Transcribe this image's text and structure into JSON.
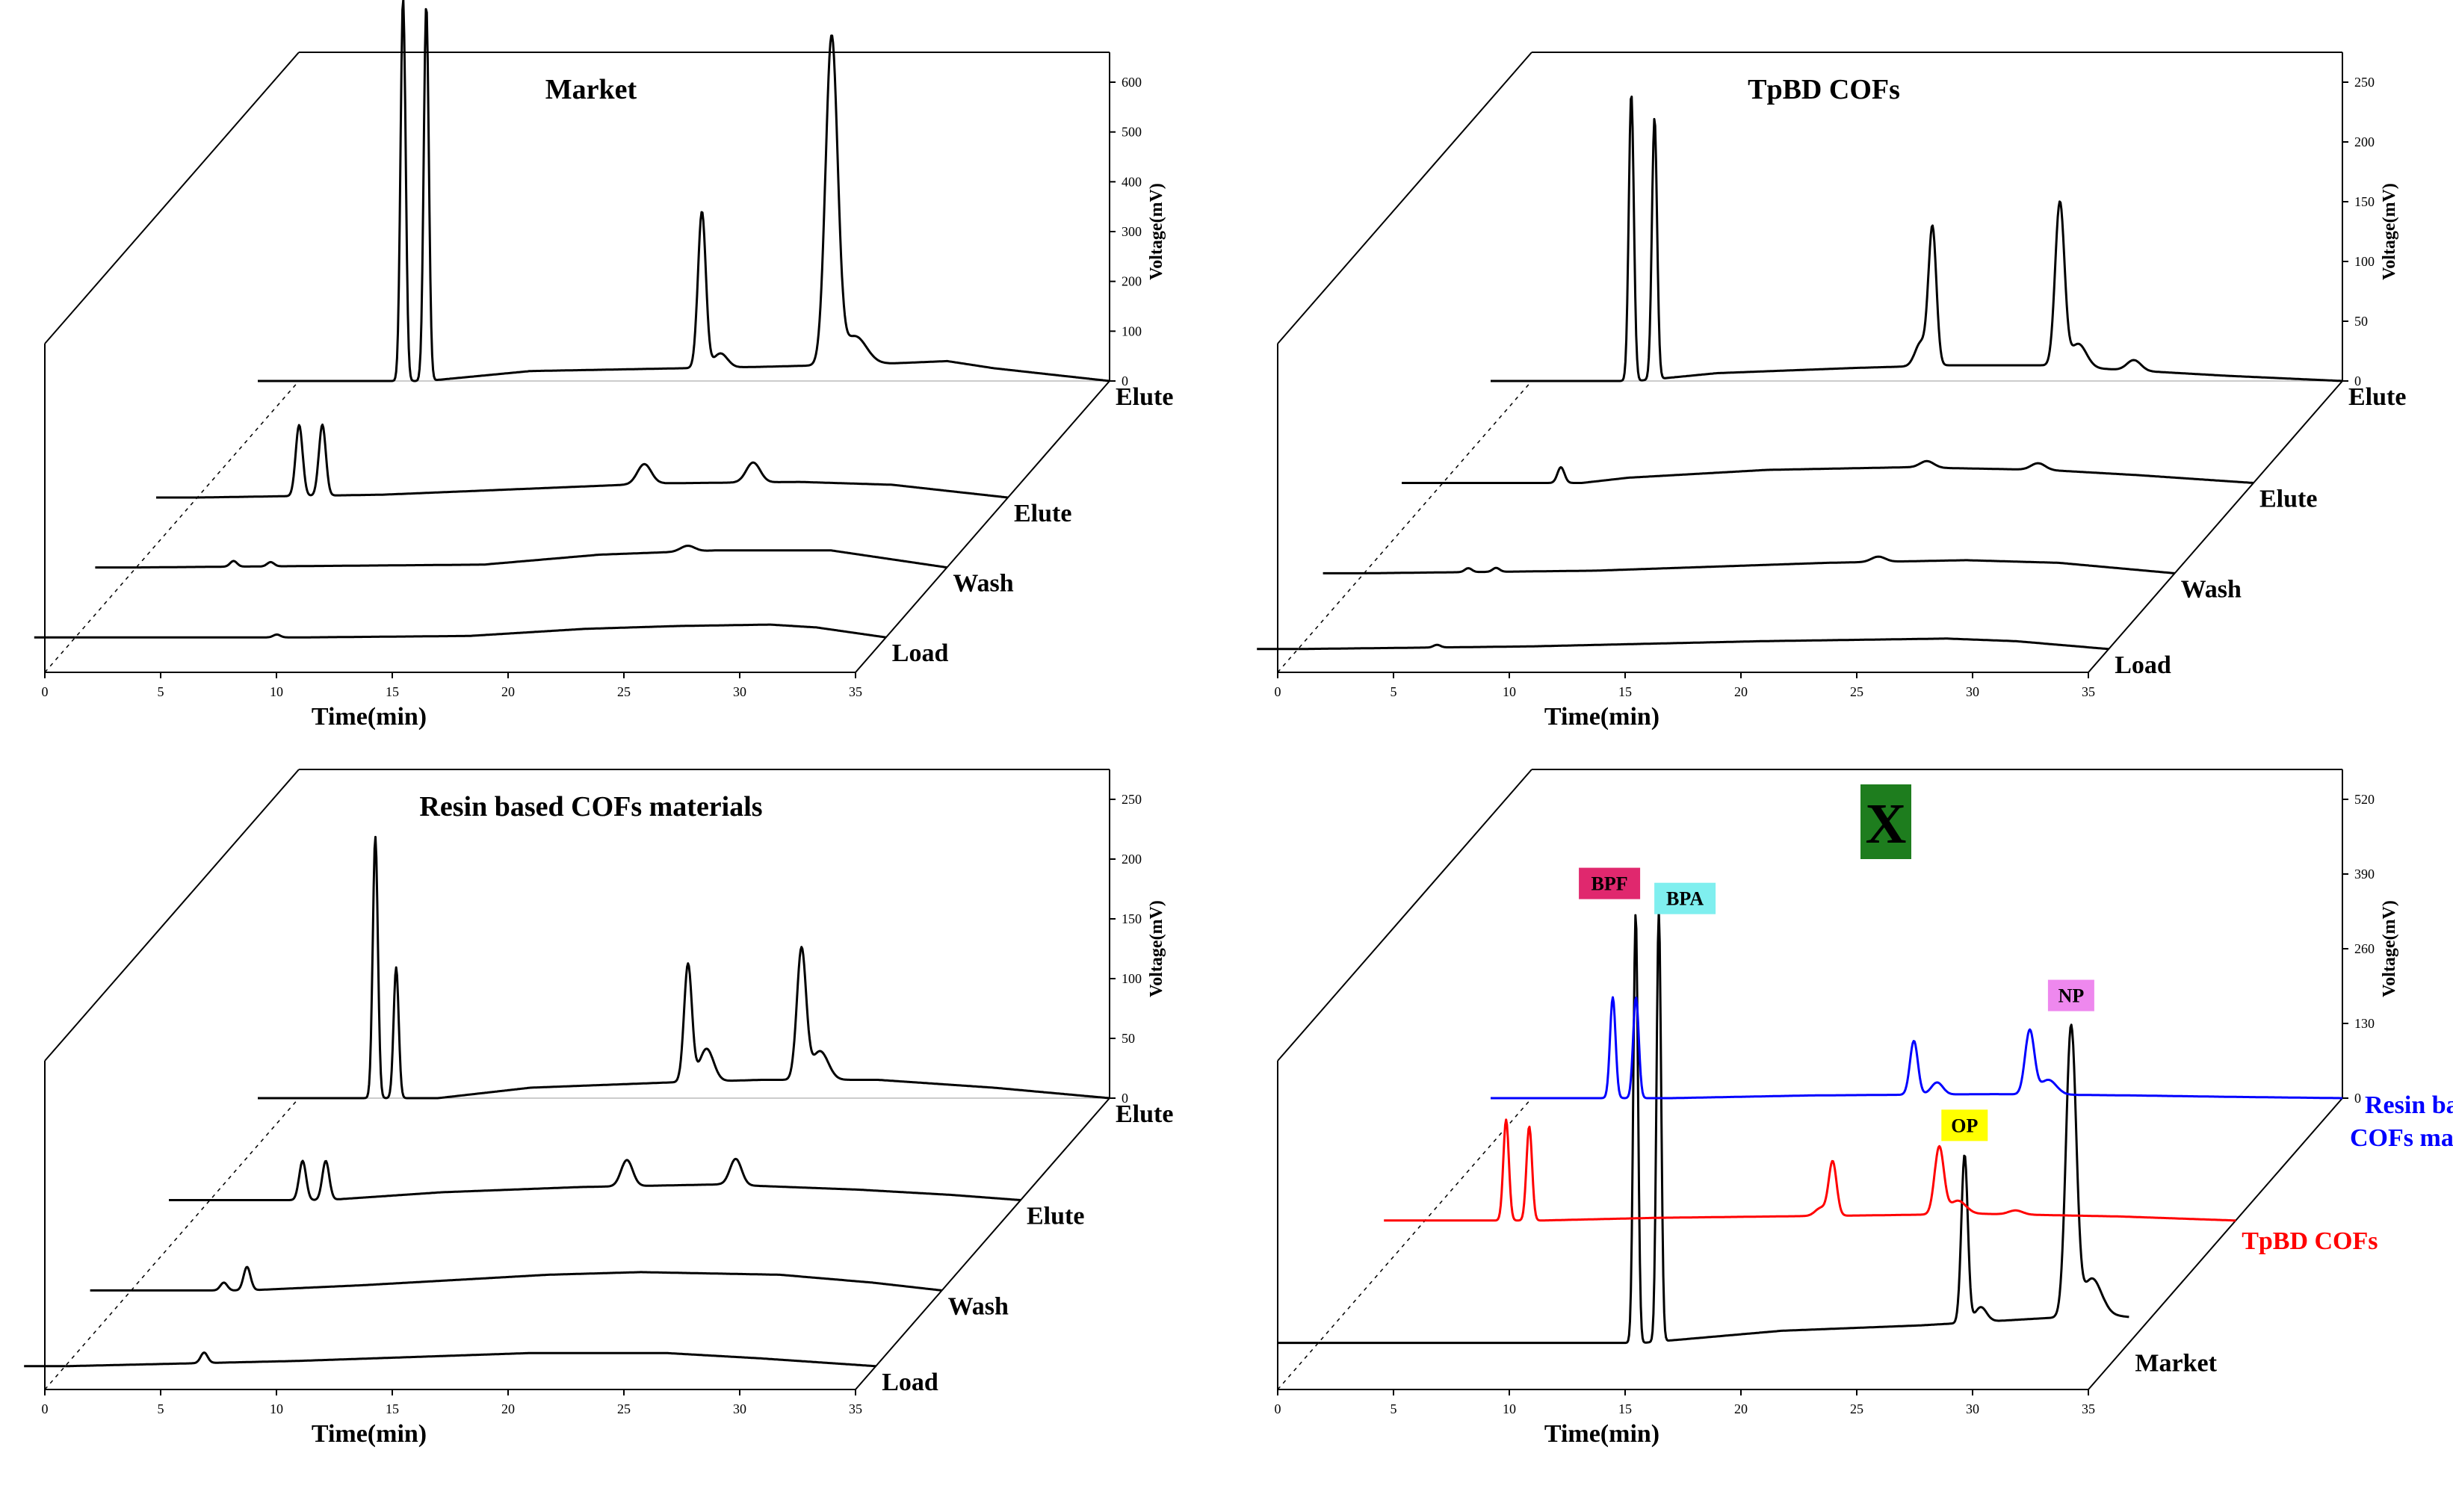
{
  "chart_data": [
    {
      "type": "line",
      "title": "Market",
      "xlabel": "Time(min)",
      "ylabel": "Voltage(mV)",
      "xlim": [
        0,
        35
      ],
      "ylim": [
        0,
        600
      ],
      "xticks": [
        "0",
        "5",
        "10",
        "15",
        "20",
        "25",
        "30",
        "35"
      ],
      "yticks": [
        "0",
        "100",
        "200",
        "300",
        "400",
        "500",
        "600"
      ],
      "series": [
        {
          "name": "Load",
          "color": "#000000",
          "baseline": [
            [
              0,
              0
            ],
            [
              10,
              0
            ],
            [
              17,
              2
            ],
            [
              22,
              12
            ],
            [
              26,
              16
            ],
            [
              30,
              18
            ],
            [
              32,
              14
            ],
            [
              35,
              0
            ]
          ],
          "peaks": [
            [
              8.7,
              4,
              0.15
            ]
          ]
        },
        {
          "name": "Wash",
          "color": "#000000",
          "baseline": [
            [
              0,
              0
            ],
            [
              15,
              4
            ],
            [
              20,
              18
            ],
            [
              25,
              24
            ],
            [
              30,
              24
            ],
            [
              35,
              0
            ]
          ],
          "peaks": [
            [
              4.2,
              8,
              0.15
            ],
            [
              5.8,
              6,
              0.15
            ],
            [
              23.8,
              8,
              0.3
            ]
          ]
        },
        {
          "name": "Elute",
          "color": "#000000",
          "baseline": [
            [
              0,
              0
            ],
            [
              8,
              4
            ],
            [
              14,
              12
            ],
            [
              20,
              20
            ],
            [
              26,
              22
            ],
            [
              30,
              18
            ],
            [
              35,
              0
            ]
          ],
          "peaks": [
            [
              4.4,
              100,
              0.15
            ],
            [
              5.4,
              100,
              0.15
            ],
            [
              19.3,
              28,
              0.3
            ],
            [
              24.0,
              28,
              0.3
            ]
          ]
        },
        {
          "name": "Elute",
          "color": "#000000",
          "baseline": [
            [
              0,
              0
            ],
            [
              5.5,
              0
            ],
            [
              10,
              14
            ],
            [
              20,
              20
            ],
            [
              25,
              24
            ],
            [
              28,
              28
            ],
            [
              30,
              18
            ],
            [
              35,
              0
            ]
          ],
          "peaks": [
            [
              4.5,
              540,
              0.11
            ],
            [
              5.5,
              530,
              0.11
            ],
            [
              17.4,
              220,
              0.17
            ],
            [
              18.2,
              20,
              0.3
            ],
            [
              23.0,
              460,
              0.26
            ],
            [
              24.0,
              40,
              0.5
            ]
          ]
        }
      ]
    },
    {
      "type": "line",
      "title": "TpBD COFs",
      "xlabel": "Time(min)",
      "ylabel": "Voltage(mV)",
      "xlim": [
        0,
        35
      ],
      "ylim": [
        0,
        250
      ],
      "xticks": [
        "0",
        "5",
        "10",
        "15",
        "20",
        "25",
        "30",
        "35"
      ],
      "yticks": [
        "0",
        "50",
        "100",
        "150",
        "200",
        "250"
      ],
      "series": [
        {
          "name": "Load",
          "color": "#000000",
          "baseline": [
            [
              0,
              0
            ],
            [
              10,
              2
            ],
            [
              20,
              6
            ],
            [
              28,
              8
            ],
            [
              31,
              6
            ],
            [
              35,
              0
            ]
          ],
          "peaks": [
            [
              6.0,
              2,
              0.15
            ]
          ]
        },
        {
          "name": "Wash",
          "color": "#000000",
          "baseline": [
            [
              0,
              0
            ],
            [
              10,
              2
            ],
            [
              20,
              8
            ],
            [
              26,
              10
            ],
            [
              30,
              8
            ],
            [
              35,
              0
            ]
          ],
          "peaks": [
            [
              4.5,
              3,
              0.15
            ],
            [
              5.7,
              3,
              0.15
            ],
            [
              22.2,
              4,
              0.3
            ]
          ]
        },
        {
          "name": "Elute",
          "color": "#000000",
          "baseline": [
            [
              0,
              0
            ],
            [
              6,
              0
            ],
            [
              8,
              4
            ],
            [
              14,
              10
            ],
            [
              20,
              12
            ],
            [
              26,
              10
            ],
            [
              30,
              6
            ],
            [
              35,
              0
            ]
          ],
          "peaks": [
            [
              5.1,
              12,
              0.15
            ],
            [
              20.9,
              5,
              0.3
            ],
            [
              25.7,
              5,
              0.3
            ]
          ]
        },
        {
          "name": "Elute",
          "color": "#000000",
          "baseline": [
            [
              0,
              0
            ],
            [
              4.5,
              0
            ],
            [
              8,
              6
            ],
            [
              14,
              10
            ],
            [
              18,
              12
            ],
            [
              22,
              12
            ],
            [
              26,
              8
            ],
            [
              30,
              4
            ],
            [
              35,
              0
            ]
          ],
          "peaks": [
            [
              4.3,
              220,
              0.11
            ],
            [
              5.3,
              200,
              0.11
            ],
            [
              17.3,
              105,
              0.17
            ],
            [
              16.8,
              18,
              0.25
            ],
            [
              22.8,
              125,
              0.2
            ],
            [
              23.6,
              18,
              0.35
            ],
            [
              26.0,
              8,
              0.3
            ]
          ]
        }
      ]
    },
    {
      "type": "line",
      "title": "Resin based COFs materials",
      "xlabel": "Time(min)",
      "ylabel": "Voltage(mV)",
      "xlim": [
        0,
        35
      ],
      "ylim": [
        0,
        250
      ],
      "xticks": [
        "0",
        "5",
        "10",
        "15",
        "20",
        "25",
        "30",
        "35"
      ],
      "yticks": [
        "0",
        "50",
        "100",
        "150",
        "200",
        "250"
      ],
      "series": [
        {
          "name": "Load",
          "color": "#000000",
          "baseline": [
            [
              0,
              0
            ],
            [
              10,
              4
            ],
            [
              20,
              10
            ],
            [
              26,
              10
            ],
            [
              30,
              6
            ],
            [
              35,
              0
            ]
          ],
          "peaks": [
            [
              6.0,
              8,
              0.15
            ]
          ]
        },
        {
          "name": "Wash",
          "color": "#000000",
          "baseline": [
            [
              0,
              0
            ],
            [
              5,
              0
            ],
            [
              10,
              4
            ],
            [
              18,
              12
            ],
            [
              22,
              14
            ],
            [
              28,
              12
            ],
            [
              32,
              6
            ],
            [
              35,
              0
            ]
          ],
          "peaks": [
            [
              4.0,
              6,
              0.15
            ],
            [
              5.0,
              18,
              0.15
            ]
          ]
        },
        {
          "name": "Elute",
          "color": "#000000",
          "baseline": [
            [
              0,
              0
            ],
            [
              5,
              0
            ],
            [
              10,
              6
            ],
            [
              16,
              10
            ],
            [
              22,
              12
            ],
            [
              28,
              8
            ],
            [
              32,
              4
            ],
            [
              35,
              0
            ]
          ],
          "peaks": [
            [
              4.0,
              30,
              0.15
            ],
            [
              5.0,
              30,
              0.15
            ],
            [
              18.0,
              20,
              0.25
            ],
            [
              22.7,
              20,
              0.25
            ]
          ]
        },
        {
          "name": "Elute",
          "color": "#000000",
          "baseline": [
            [
              0,
              0
            ],
            [
              6,
              0
            ],
            [
              10,
              8
            ],
            [
              16,
              12
            ],
            [
              20,
              14
            ],
            [
              25,
              14
            ],
            [
              30,
              8
            ],
            [
              35,
              0
            ]
          ],
          "peaks": [
            [
              3.3,
              200,
              0.11
            ],
            [
              4.2,
              100,
              0.11
            ],
            [
              16.8,
              90,
              0.17
            ],
            [
              17.6,
              25,
              0.3
            ],
            [
              21.7,
              100,
              0.2
            ],
            [
              22.5,
              22,
              0.35
            ]
          ]
        }
      ]
    },
    {
      "type": "line",
      "title": "X",
      "xlabel": "Time(min)",
      "ylabel": "Voltage(mV)",
      "xlim": [
        0,
        35
      ],
      "ylim": [
        0,
        650
      ],
      "xticks": [
        "0",
        "5",
        "10",
        "15",
        "20",
        "25",
        "30",
        "35"
      ],
      "yticks": [
        "0",
        "130",
        "260",
        "390",
        "520"
      ],
      "annotations": [
        {
          "label": "BPF",
          "x": 13.7,
          "bg": "#e0286e"
        },
        {
          "label": "BPA",
          "x": 14.7,
          "bg": "#7fefef"
        },
        {
          "label": "OP",
          "x": 27.9,
          "bg": "#ffff00"
        },
        {
          "label": "NP",
          "x": 32.5,
          "bg": "#ee88ee"
        },
        {
          "label": "X",
          "bg": "#1e7d1e"
        }
      ],
      "series": [
        {
          "name": "Market",
          "color": "#000000",
          "baseline": [
            [
              0,
              0
            ],
            [
              14,
              0
            ],
            [
              16,
              6
            ],
            [
              20,
              18
            ],
            [
              26,
              26
            ],
            [
              30,
              34
            ],
            [
              34,
              42
            ],
            [
              38,
              28
            ],
            [
              40,
              0
            ]
          ],
          "peaks": [
            [
              13.7,
              640,
              0.1
            ],
            [
              14.7,
              640,
              0.1
            ],
            [
              27.9,
              250,
              0.14
            ],
            [
              28.6,
              22,
              0.25
            ],
            [
              32.5,
              430,
              0.22
            ],
            [
              33.4,
              55,
              0.4
            ]
          ]
        },
        {
          "name": "TpBD COFs",
          "color": "#ff0000",
          "baseline": [
            [
              0,
              0
            ],
            [
              5,
              0
            ],
            [
              10,
              4
            ],
            [
              20,
              8
            ],
            [
              24,
              10
            ],
            [
              30,
              6
            ],
            [
              35,
              0
            ]
          ],
          "peaks": [
            [
              3.5,
              150,
              0.12
            ],
            [
              4.5,
              140,
              0.12
            ],
            [
              17.6,
              80,
              0.17
            ],
            [
              17.1,
              12,
              0.25
            ],
            [
              22.2,
              100,
              0.2
            ],
            [
              23.0,
              20,
              0.35
            ],
            [
              25.5,
              6,
              0.3
            ]
          ]
        },
        {
          "name": "Resin based COFs materials",
          "color": "#0000ff",
          "baseline": [
            [
              0,
              0
            ],
            [
              6,
              0
            ],
            [
              12,
              4
            ],
            [
              20,
              6
            ],
            [
              26,
              4
            ],
            [
              30,
              2
            ],
            [
              35,
              0
            ]
          ],
          "peaks": [
            [
              3.5,
              150,
              0.12
            ],
            [
              4.5,
              150,
              0.12
            ],
            [
              16.5,
              80,
              0.17
            ],
            [
              17.5,
              18,
              0.25
            ],
            [
              21.5,
              95,
              0.2
            ],
            [
              22.3,
              22,
              0.35
            ]
          ]
        }
      ]
    }
  ]
}
